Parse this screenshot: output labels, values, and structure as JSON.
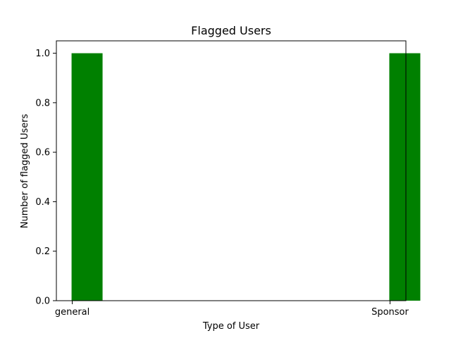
{
  "chart_data": {
    "type": "bar",
    "title": "Flagged Users",
    "xlabel": "Type of User",
    "ylabel": "Number of flagged Users",
    "categories": [
      "general",
      "Sponsor"
    ],
    "values": [
      1,
      1
    ],
    "ylim": [
      0,
      1.05
    ],
    "yticks": [
      "0.0",
      "0.2",
      "0.4",
      "0.6",
      "0.8",
      "1.0"
    ],
    "bar_color": "#008000",
    "grid": false,
    "legend": "none"
  }
}
